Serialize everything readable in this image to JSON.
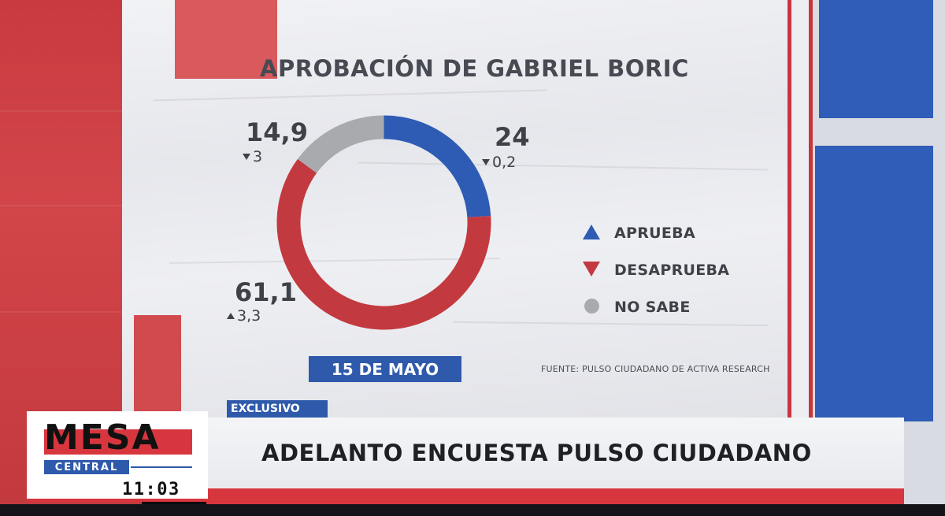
{
  "colors": {
    "aprueba": "#2e5bb4",
    "desaprueba": "#c23a3f",
    "no_sabe": "#a9aaae",
    "accent_blue": "#2f5aab",
    "accent_red": "#d8363e"
  },
  "chart_data": {
    "type": "pie",
    "title": "APROBACIÓN DE GABRIEL BORIC",
    "categories": [
      "APRUEBA",
      "DESAPRUEBA",
      "NO SABE"
    ],
    "values": [
      24,
      61.1,
      14.9
    ],
    "value_labels": [
      "24",
      "61,1",
      "14,9"
    ],
    "changes": [
      {
        "direction": "down",
        "value": "0,2"
      },
      {
        "direction": "up",
        "value": "3,3"
      },
      {
        "direction": "down",
        "value": "3"
      }
    ],
    "legend_position": "right",
    "date": "15 DE MAYO",
    "source": "FUENTE: PULSO CIUDADANO DE ACTIVA RESEARCH"
  },
  "lower_third": {
    "tag": "EXCLUSIVO",
    "headline": "ADELANTO ENCUESTA PULSO CIUDADANO"
  },
  "logo": {
    "word1": "MESA",
    "word2": "CENTRAL",
    "time": "11:03"
  }
}
